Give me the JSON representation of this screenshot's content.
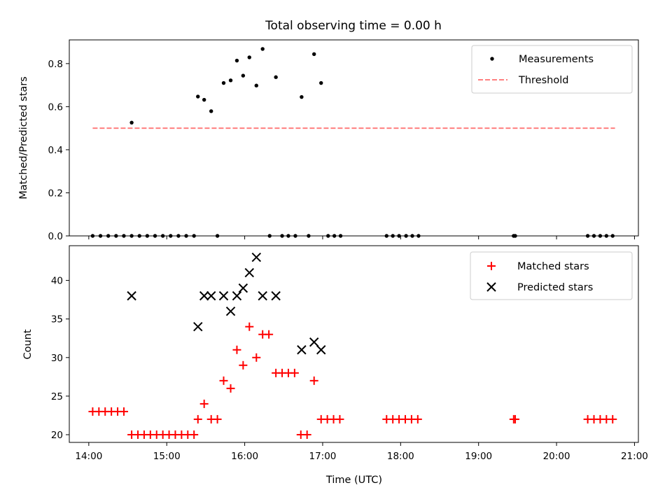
{
  "chart_data": [
    {
      "type": "scatter",
      "title": "Total observing time = 0.00 h",
      "xlabel": "",
      "ylabel": "Matched/Predicted stars",
      "xlim": [
        13.75,
        21.05
      ],
      "ylim": [
        0.0,
        0.91
      ],
      "yticks": [
        0.0,
        0.2,
        0.4,
        0.6,
        0.8
      ],
      "ytick_labels": [
        "0.0",
        "0.2",
        "0.4",
        "0.6",
        "0.8"
      ],
      "grid": false,
      "legend": "top-right",
      "series": [
        {
          "name": "Measurements",
          "kind": "scatter",
          "marker": "dot",
          "color": "#000000",
          "x": [
            14.05,
            14.15,
            14.25,
            14.35,
            14.45,
            14.55,
            14.55,
            14.65,
            14.75,
            14.85,
            14.95,
            15.05,
            15.15,
            15.25,
            15.35,
            15.4,
            15.48,
            15.57,
            15.65,
            15.73,
            15.82,
            15.9,
            15.98,
            16.06,
            16.15,
            16.23,
            16.32,
            16.4,
            16.48,
            16.56,
            16.65,
            16.73,
            16.82,
            16.89,
            16.98,
            17.07,
            17.15,
            17.23,
            17.82,
            17.9,
            17.98,
            18.07,
            18.15,
            18.23,
            19.45,
            19.47,
            20.4,
            20.48,
            20.56,
            20.64,
            20.72
          ],
          "y": [
            0.0,
            0.0,
            0.0,
            0.0,
            0.0,
            0.0,
            0.526,
            0.0,
            0.0,
            0.0,
            0.0,
            0.0,
            0.0,
            0.0,
            0.0,
            0.647,
            0.632,
            0.579,
            0.0,
            0.71,
            0.722,
            0.814,
            0.744,
            0.829,
            0.698,
            0.868,
            0.0,
            0.737,
            0.0,
            0.0,
            0.0,
            0.645,
            0.0,
            0.844,
            0.71,
            0.0,
            0.0,
            0.0,
            0.0,
            0.0,
            0.0,
            0.0,
            0.0,
            0.0,
            0.0,
            0.0,
            0.0,
            0.0,
            0.0,
            0.0,
            0.0
          ]
        },
        {
          "name": "Threshold",
          "kind": "line",
          "style": "dashed",
          "color": "#ff7f7f",
          "x": [
            14.05,
            20.75
          ],
          "y": [
            0.5,
            0.5
          ]
        }
      ]
    },
    {
      "type": "scatter",
      "title": "",
      "xlabel": "Time (UTC)",
      "ylabel": "Count",
      "xlim": [
        13.75,
        21.05
      ],
      "ylim": [
        19.0,
        44.5
      ],
      "xticks": [
        14,
        15,
        16,
        17,
        18,
        19,
        20,
        21
      ],
      "xtick_labels": [
        "14:00",
        "15:00",
        "16:00",
        "17:00",
        "18:00",
        "19:00",
        "20:00",
        "21:00"
      ],
      "yticks": [
        20,
        25,
        30,
        35,
        40
      ],
      "ytick_labels": [
        "20",
        "25",
        "30",
        "35",
        "40"
      ],
      "grid": false,
      "legend": "top-right",
      "series": [
        {
          "name": "Matched stars",
          "kind": "scatter",
          "marker": "plus",
          "color": "#ff0000",
          "x": [
            14.05,
            14.13,
            14.21,
            14.29,
            14.37,
            14.45,
            14.55,
            14.63,
            14.71,
            14.79,
            14.87,
            14.95,
            15.03,
            15.11,
            15.19,
            15.27,
            15.35,
            15.4,
            15.48,
            15.57,
            15.65,
            15.73,
            15.82,
            15.9,
            15.98,
            16.06,
            16.15,
            16.23,
            16.31,
            16.4,
            16.48,
            16.56,
            16.64,
            16.72,
            16.8,
            16.89,
            16.98,
            17.06,
            17.14,
            17.22,
            17.82,
            17.9,
            17.98,
            18.06,
            18.14,
            18.22,
            19.45,
            19.47,
            20.4,
            20.48,
            20.56,
            20.64,
            20.72
          ],
          "y": [
            23,
            23,
            23,
            23,
            23,
            23,
            20,
            20,
            20,
            20,
            20,
            20,
            20,
            20,
            20,
            20,
            20,
            22,
            24,
            22,
            22,
            27,
            26,
            31,
            29,
            34,
            30,
            33,
            33,
            28,
            28,
            28,
            28,
            20,
            20,
            27,
            22,
            22,
            22,
            22,
            22,
            22,
            22,
            22,
            22,
            22,
            22,
            22,
            22,
            22,
            22,
            22,
            22
          ]
        },
        {
          "name": "Predicted stars",
          "kind": "scatter",
          "marker": "x",
          "color": "#000000",
          "x": [
            14.55,
            15.4,
            15.48,
            15.57,
            15.73,
            15.82,
            15.9,
            15.98,
            16.06,
            16.15,
            16.23,
            16.4,
            16.73,
            16.89,
            16.98
          ],
          "y": [
            38,
            34,
            38,
            38,
            38,
            36,
            38,
            39,
            41,
            43,
            38,
            38,
            31,
            32,
            31
          ]
        }
      ]
    }
  ]
}
